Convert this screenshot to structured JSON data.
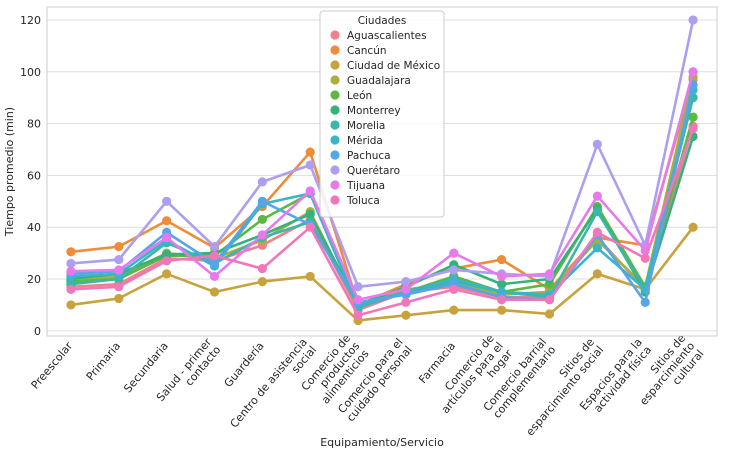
{
  "chart_data": {
    "type": "line",
    "xlabel": "Equipamiento/Servicio",
    "ylabel": "Tiempo promedio (min)",
    "ylim": [
      -2,
      125
    ],
    "yticks": [
      0,
      20,
      40,
      60,
      80,
      100,
      120
    ],
    "grid": true,
    "legend_title": "Ciudades",
    "legend_position": "top-center",
    "categories": [
      "Preescolar",
      "Primaria",
      "Secundaria",
      "Salud - primer\ncontacto",
      "Guardería",
      "Centro de asistencia\nsocial",
      "Comercio de\nproductos\nalimenticios",
      "Comercio para el\ncuidado personal",
      "Farmacia",
      "Comercio de\nartículos para el\nhogar",
      "Comercio barrial\ncomplementario",
      "Sitios de\nesparcimiento social",
      "Espacios para la\nactividad física",
      "Sitios de\nesparcimiento\ncultural"
    ],
    "series": [
      {
        "name": "Aguascalientes",
        "color": "#f0808f",
        "values": [
          17,
          18,
          28,
          27,
          33,
          43,
          8,
          15,
          17,
          13,
          13,
          36,
          16,
          79
        ]
      },
      {
        "name": "Cancún",
        "color": "#ed8d3a",
        "values": [
          30.5,
          32.5,
          42.5,
          32,
          48,
          69,
          10,
          18,
          24,
          27.5,
          16,
          36,
          33,
          97
        ]
      },
      {
        "name": "Ciudad de México",
        "color": "#c8a23c",
        "values": [
          10,
          12.5,
          22,
          15,
          19,
          21,
          4,
          6,
          8,
          8,
          6.5,
          22,
          16,
          40
        ]
      },
      {
        "name": "Guadalajara",
        "color": "#a9b03c",
        "values": [
          19,
          21,
          30,
          28,
          35,
          46,
          9,
          16,
          18,
          14,
          15,
          35,
          17,
          98
        ]
      },
      {
        "name": "León",
        "color": "#5cb843",
        "values": [
          19,
          20,
          29,
          29,
          43,
          53,
          9,
          15,
          21,
          15,
          18,
          48,
          17,
          82.5
        ]
      },
      {
        "name": "Monterrey",
        "color": "#35b27a",
        "values": [
          20,
          22,
          29.5,
          30,
          37,
          45,
          10,
          17,
          25.5,
          18,
          20,
          47,
          15,
          75
        ]
      },
      {
        "name": "Morelia",
        "color": "#3ab7a6",
        "values": [
          18,
          20,
          34,
          26,
          36,
          42,
          10,
          15,
          19,
          15,
          13,
          46,
          16,
          90
        ]
      },
      {
        "name": "Mérida",
        "color": "#3ab5c8",
        "values": [
          21,
          22,
          35,
          25,
          49,
          53,
          9,
          15,
          20,
          15,
          14,
          32,
          16,
          93
        ]
      },
      {
        "name": "Pachuca",
        "color": "#56a5e8",
        "values": [
          22,
          23,
          38,
          26,
          50,
          41,
          11,
          14,
          18,
          13,
          12,
          37,
          11,
          95
        ]
      },
      {
        "name": "Querétaro",
        "color": "#ad9ef0",
        "values": [
          26,
          27.5,
          50,
          32.5,
          57.5,
          64,
          17,
          19,
          23.5,
          22,
          21,
          72,
          33,
          120
        ]
      },
      {
        "name": "Tijuana",
        "color": "#e67aeb",
        "values": [
          23,
          23.5,
          36,
          21,
          37,
          54,
          12,
          16,
          30,
          21,
          22,
          52,
          31,
          100
        ]
      },
      {
        "name": "Toluca",
        "color": "#f176ba",
        "values": [
          16,
          17,
          27,
          29,
          24,
          40,
          6,
          11,
          16,
          12,
          12,
          38,
          28,
          78
        ]
      }
    ]
  }
}
